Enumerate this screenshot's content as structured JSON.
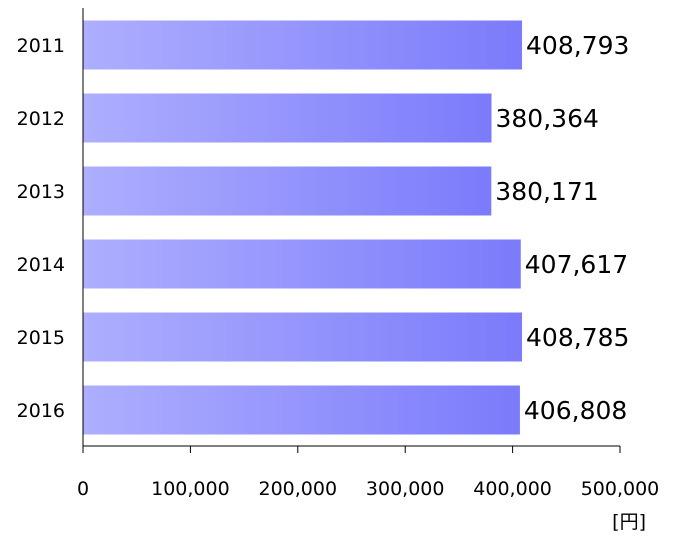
{
  "chart_data": {
    "type": "bar",
    "orientation": "horizontal",
    "categories": [
      "2011",
      "2012",
      "2013",
      "2014",
      "2015",
      "2016"
    ],
    "values": [
      408793,
      380364,
      380171,
      407617,
      408785,
      406808
    ],
    "value_labels": [
      "408,793",
      "380,364",
      "380,171",
      "407,617",
      "408,785",
      "406,808"
    ],
    "xlim": [
      0,
      500000
    ],
    "x_ticks": [
      0,
      100000,
      200000,
      300000,
      400000,
      500000
    ],
    "x_tick_labels": [
      "0",
      "100,000",
      "200,000",
      "300,000",
      "400,000",
      "500,000"
    ],
    "unit_label": "[円]",
    "grid": false,
    "legend": "none",
    "bar_color_start": "#aeaefe",
    "bar_color_end": "#7b7bfb"
  }
}
